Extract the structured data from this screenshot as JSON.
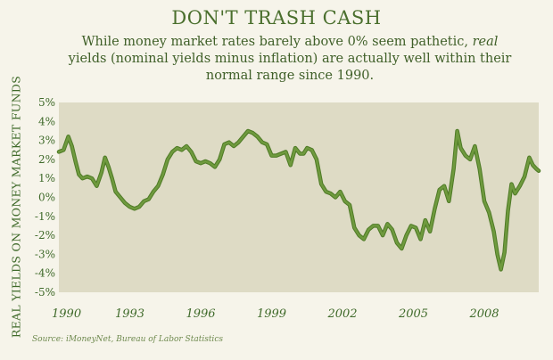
{
  "header": {
    "title": "DON'T TRASH CASH",
    "subtitle_part1": "While money market rates barely above 0% seem pathetic, ",
    "subtitle_emph": "real",
    "subtitle_part2": " yields (nominal yields minus inflation) are actually well within their normal range since 1990."
  },
  "footer": {
    "source": "Source: iMoneyNet, Bureau of Labor Statistics"
  },
  "colors": {
    "plot_bg": "#dedbc5",
    "line": "#6f9a3e",
    "line_shadow": "#4e7a26",
    "text": "#3f6a2a"
  },
  "chart_data": {
    "type": "line",
    "title": "DON'T TRASH CASH",
    "ylabel": "REAL YIELDS ON MONEY MARKET FUNDS",
    "xlabel": "",
    "xlim": [
      1990,
      2010.3
    ],
    "ylim": [
      -5,
      5
    ],
    "grid": false,
    "x_ticks": [
      1990,
      1993,
      1996,
      1999,
      2002,
      2005,
      2008
    ],
    "x_tick_labels": [
      "1990",
      "1993",
      "1996",
      "1999",
      "2002",
      "2005",
      "2008"
    ],
    "y_ticks": [
      5,
      4,
      3,
      2,
      1,
      0,
      -1,
      -2,
      -3,
      -4,
      -5
    ],
    "y_tick_labels": [
      "5%",
      "4%",
      "3%",
      "2%",
      "1%",
      "0%",
      "-1%",
      "-2%",
      "-3%",
      "-4%",
      "-5%"
    ],
    "series": [
      {
        "x": [
          1990.0,
          1990.2,
          1990.4,
          1990.55,
          1990.7,
          1990.85,
          1991.0,
          1991.2,
          1991.4,
          1991.6,
          1991.8,
          1991.95,
          1992.1,
          1992.25,
          1992.4,
          1992.6,
          1992.8,
          1993.0,
          1993.2,
          1993.4,
          1993.6,
          1993.8,
          1994.0,
          1994.2,
          1994.4,
          1994.6,
          1994.8,
          1995.0,
          1995.2,
          1995.4,
          1995.6,
          1995.8,
          1996.0,
          1996.2,
          1996.4,
          1996.6,
          1996.8,
          1997.0,
          1997.2,
          1997.4,
          1997.6,
          1997.8,
          1998.0,
          1998.2,
          1998.4,
          1998.6,
          1998.8,
          1999.0,
          1999.2,
          1999.4,
          1999.6,
          1999.8,
          2000.0,
          2000.2,
          2000.35,
          2000.5,
          2000.7,
          2000.9,
          2001.1,
          2001.3,
          2001.5,
          2001.7,
          2001.9,
          2002.1,
          2002.3,
          2002.5,
          2002.7,
          2002.9,
          2003.1,
          2003.3,
          2003.5,
          2003.7,
          2003.9,
          2004.1,
          2004.3,
          2004.5,
          2004.7,
          2004.9,
          2005.1,
          2005.3,
          2005.5,
          2005.7,
          2005.9,
          2006.1,
          2006.3,
          2006.5,
          2006.7,
          2006.85,
          2007.0,
          2007.2,
          2007.4,
          2007.6,
          2007.8,
          2008.0,
          2008.2,
          2008.4,
          2008.55,
          2008.7,
          2008.85,
          2009.0,
          2009.15,
          2009.3,
          2009.5,
          2009.7,
          2009.9,
          2010.05,
          2010.2,
          2010.3
        ],
        "values": [
          2.4,
          2.5,
          3.2,
          2.7,
          1.9,
          1.2,
          1.0,
          1.1,
          1.0,
          0.6,
          1.3,
          2.1,
          1.6,
          1.0,
          0.3,
          0.0,
          -0.3,
          -0.5,
          -0.6,
          -0.5,
          -0.2,
          -0.1,
          0.3,
          0.6,
          1.2,
          2.0,
          2.4,
          2.6,
          2.5,
          2.7,
          2.4,
          1.9,
          1.8,
          1.9,
          1.8,
          1.6,
          2.0,
          2.8,
          2.9,
          2.7,
          2.9,
          3.2,
          3.5,
          3.4,
          3.2,
          2.9,
          2.8,
          2.2,
          2.2,
          2.3,
          2.4,
          1.7,
          2.6,
          2.3,
          2.3,
          2.6,
          2.5,
          2.0,
          0.7,
          0.3,
          0.2,
          0.0,
          0.3,
          -0.2,
          -0.4,
          -1.6,
          -2.0,
          -2.2,
          -1.7,
          -1.5,
          -1.5,
          -2.0,
          -1.4,
          -1.7,
          -2.4,
          -2.7,
          -2.0,
          -1.5,
          -1.6,
          -2.2,
          -1.2,
          -1.8,
          -0.6,
          0.4,
          0.6,
          -0.2,
          1.5,
          3.5,
          2.6,
          2.2,
          2.0,
          2.7,
          1.5,
          -0.2,
          -0.8,
          -1.8,
          -3.0,
          -3.8,
          -2.9,
          -0.7,
          0.7,
          0.2,
          0.6,
          1.1,
          2.1,
          1.7,
          1.5,
          1.4
        ]
      }
    ]
  }
}
